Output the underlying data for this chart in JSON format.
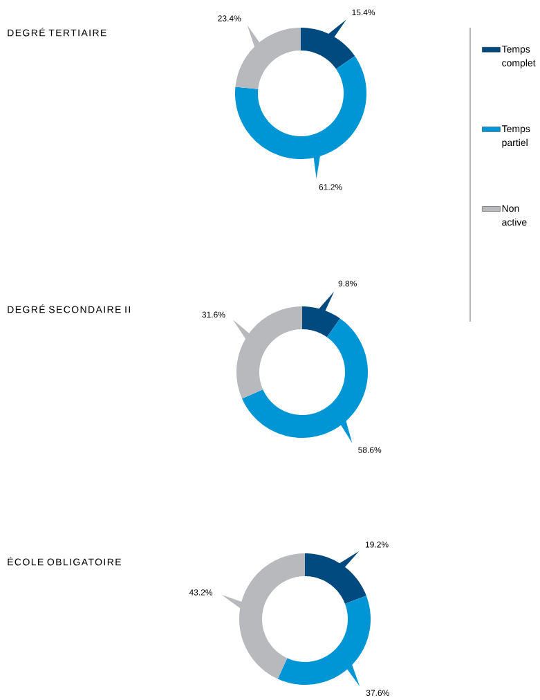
{
  "chart_data": [
    {
      "type": "donut",
      "title": "DEGRÉ TERTIAIRE",
      "categories": [
        "Temps complet",
        "Temps partiel",
        "Non active"
      ],
      "values": [
        15.4,
        61.2,
        23.4
      ],
      "value_labels": [
        "15.4%",
        "61.2%",
        "23.4%"
      ],
      "colors": [
        "#004a80",
        "#0096d6",
        "#b8b9bd"
      ],
      "legend": "right"
    },
    {
      "type": "donut",
      "title": "DEGRÉ SECONDAIRE II",
      "categories": [
        null,
        null,
        null
      ],
      "values": [
        9.8,
        58.6,
        31.6
      ],
      "value_labels": [
        "9.8%",
        "58.6%",
        "31.6%"
      ],
      "colors": [
        "#004a80",
        "#0096d6",
        "#b8b9bd"
      ]
    },
    {
      "type": "donut",
      "title": "ÉCOLE OBLIGATOIRE",
      "categories": [
        null,
        null,
        null
      ],
      "values": [
        19.2,
        37.6,
        43.2
      ],
      "value_labels": [
        "19.2%",
        "37.6%",
        "43.2%"
      ],
      "colors": [
        "#004a80",
        "#0096d6",
        "#b8b9bd"
      ]
    }
  ]
}
